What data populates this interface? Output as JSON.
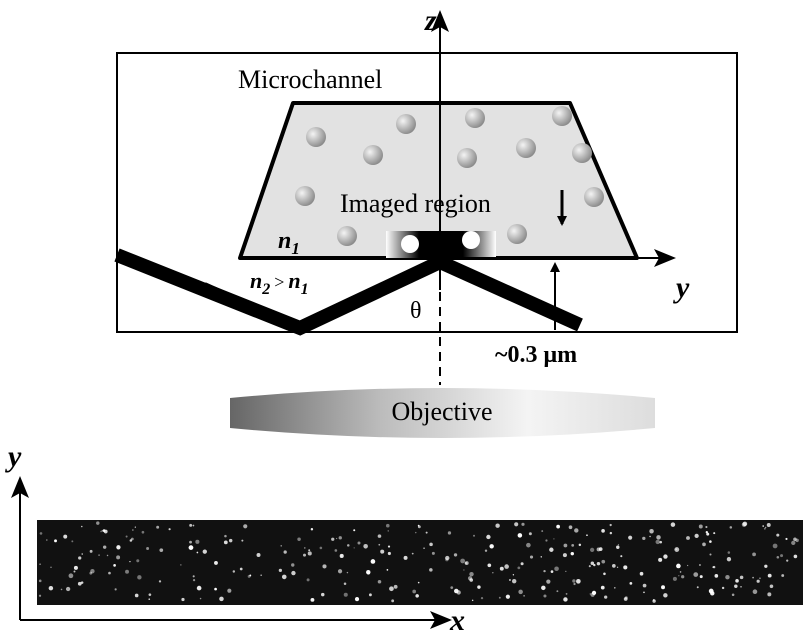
{
  "axes": {
    "z": "z",
    "y_top": "y",
    "y_bottom": "y",
    "x_bottom": "x"
  },
  "labels": {
    "microchannel": "Microchannel",
    "imaged_region": "Imaged region",
    "angle": "θ",
    "depth": "~0.3 μm",
    "objective": "Objective"
  },
  "media": {
    "inner": {
      "symbol": "n",
      "subscript": "1"
    },
    "relation": {
      "left": {
        "symbol": "n",
        "subscript": "2"
      },
      "operator": ">",
      "right": {
        "symbol": "n",
        "subscript": "1"
      }
    }
  }
}
